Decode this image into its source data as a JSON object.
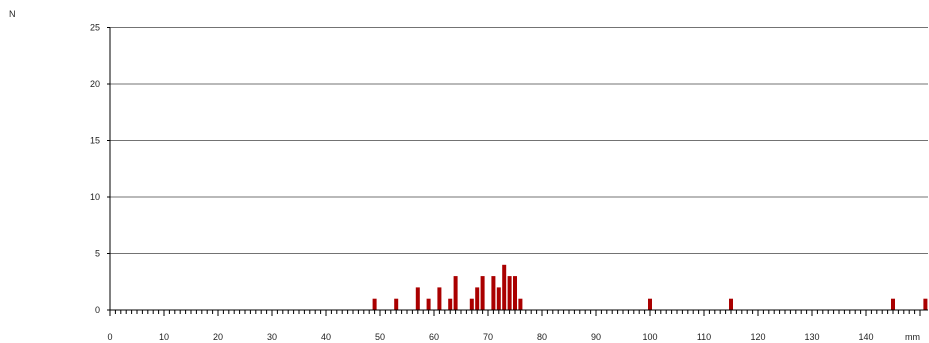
{
  "chart_data": {
    "type": "bar",
    "ylabel": "N",
    "xlabel": "mm",
    "xlim": [
      0,
      150
    ],
    "ylim": [
      0,
      25
    ],
    "x_ticks": [
      0,
      10,
      20,
      30,
      40,
      50,
      60,
      70,
      80,
      90,
      100,
      110,
      120,
      130,
      140
    ],
    "y_ticks": [
      0,
      5,
      10,
      15,
      20,
      25
    ],
    "grid": "horizontal",
    "bar_color": "#aa0000",
    "bars": [
      {
        "x": 49,
        "y": 1
      },
      {
        "x": 53,
        "y": 1
      },
      {
        "x": 57,
        "y": 2
      },
      {
        "x": 59,
        "y": 1
      },
      {
        "x": 61,
        "y": 2
      },
      {
        "x": 63,
        "y": 1
      },
      {
        "x": 64,
        "y": 3
      },
      {
        "x": 67,
        "y": 1
      },
      {
        "x": 68,
        "y": 2
      },
      {
        "x": 69,
        "y": 3
      },
      {
        "x": 71,
        "y": 3
      },
      {
        "x": 72,
        "y": 2
      },
      {
        "x": 73,
        "y": 4
      },
      {
        "x": 74,
        "y": 3
      },
      {
        "x": 75,
        "y": 3
      },
      {
        "x": 76,
        "y": 1
      },
      {
        "x": 100,
        "y": 1
      },
      {
        "x": 115,
        "y": 1
      },
      {
        "x": 145,
        "y": 1
      },
      {
        "x": 151,
        "y": 1
      }
    ]
  }
}
